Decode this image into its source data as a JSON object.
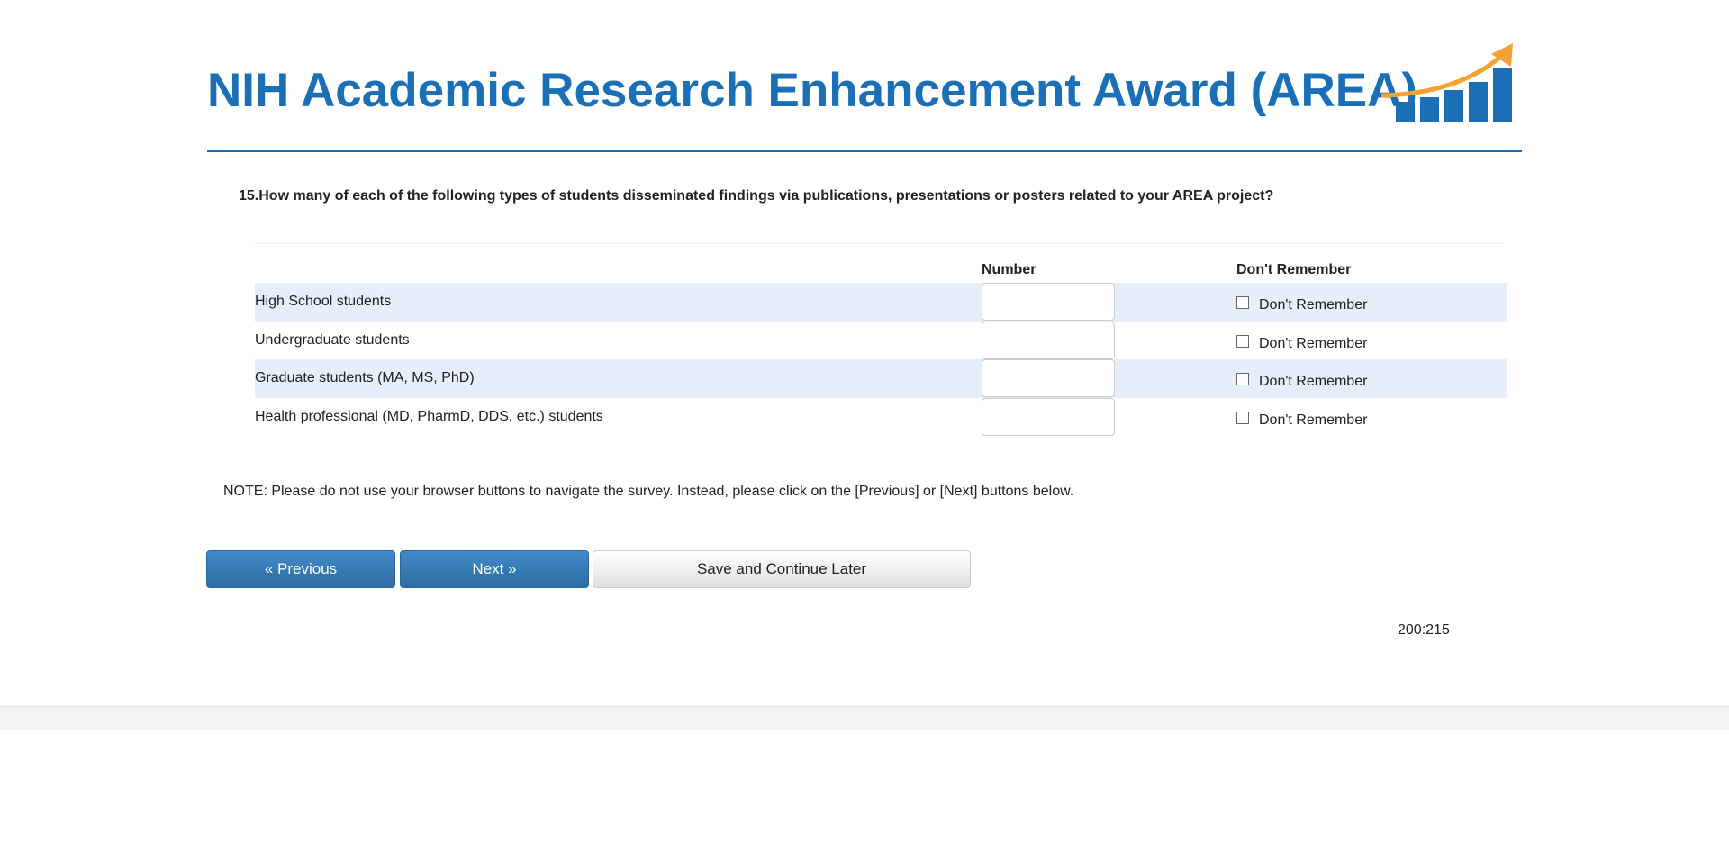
{
  "header": {
    "title": "NIH Academic Research Enhancement Award (AREA)",
    "logo": "bar-chart-growth-arrow-logo",
    "brand_color": "#1a6fb7",
    "accent_color": "#f5a232"
  },
  "question": {
    "text": "15.How many of each of the following types of students disseminated findings via publications, presentations or posters related to your AREA project?"
  },
  "table": {
    "columns": [
      "Number",
      "Don't Remember"
    ],
    "rows": [
      {
        "label": "High School students",
        "number": "",
        "dont_remember_label": "Don't Remember",
        "checked": false
      },
      {
        "label": "Undergraduate students",
        "number": "",
        "dont_remember_label": "Don't Remember",
        "checked": false
      },
      {
        "label": "Graduate students (MA, MS, PhD)",
        "number": "",
        "dont_remember_label": "Don't Remember",
        "checked": false
      },
      {
        "label": "Health professional (MD, PharmD, DDS, etc.) students",
        "number": "",
        "dont_remember_label": "Don't Remember",
        "checked": false
      }
    ]
  },
  "note": "NOTE: Please do not use your browser buttons to navigate the survey. Instead, please click on the [Previous] or [Next] buttons below.",
  "buttons": {
    "previous": "« Previous",
    "next": "Next »",
    "save": "Save and Continue Later"
  },
  "page_id": "200:215"
}
